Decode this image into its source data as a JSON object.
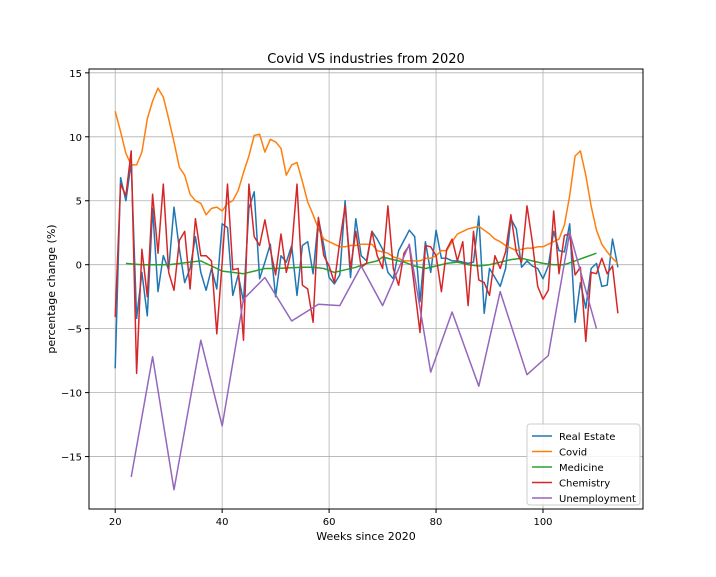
{
  "chart_data": {
    "type": "line",
    "title": "Covid VS industries from 2020",
    "xlabel": "Weeks since 2020",
    "ylabel": "percentage change (%)",
    "xlim": [
      15.1,
      118.7
    ],
    "ylim": [
      -19.1,
      15.3
    ],
    "xticks": [
      20,
      40,
      60,
      80,
      100
    ],
    "yticks": [
      -15,
      -10,
      -5,
      0,
      5,
      10,
      15
    ],
    "ytick_labels": [
      "−15",
      "−10",
      "−5",
      "0",
      "5",
      "10",
      "15"
    ],
    "grid": true,
    "legend_position": "lower-right",
    "series": [
      {
        "name": "Real Estate",
        "color": "#1f77b4",
        "x": [
          20,
          21,
          22,
          23,
          24,
          25,
          26,
          27,
          28,
          29,
          30,
          31,
          32,
          33,
          34,
          35,
          36,
          37,
          38,
          39,
          40,
          41,
          42,
          43,
          44,
          45,
          46,
          47,
          48,
          49,
          50,
          51,
          52,
          53,
          54,
          55,
          56,
          57,
          58,
          59,
          60,
          61,
          62,
          63,
          64,
          65,
          66,
          67,
          68,
          69,
          70,
          71,
          72,
          73,
          74,
          75,
          76,
          77,
          78,
          79,
          80,
          81,
          82,
          83,
          84,
          85,
          86,
          87,
          88,
          89,
          90,
          91,
          92,
          93,
          94,
          95,
          96,
          97,
          98,
          99,
          100,
          101,
          102,
          103,
          104,
          105,
          106,
          107,
          108,
          109,
          110,
          111,
          112,
          113,
          114
        ],
        "y": [
          -8.1,
          6.8,
          5.0,
          8.0,
          -4.2,
          -0.6,
          -4.0,
          4.4,
          -2.1,
          0.7,
          -0.4,
          4.5,
          1.2,
          -1.4,
          -0.3,
          2.2,
          -0.6,
          -2.0,
          -0.3,
          -1.9,
          3.2,
          2.9,
          -2.4,
          -0.8,
          -2.9,
          4.4,
          5.7,
          -1.1,
          0.2,
          1.6,
          -2.5,
          0.7,
          0.2,
          1.5,
          -2.4,
          1.5,
          1.8,
          -0.7,
          3.6,
          1.5,
          -1.0,
          -1.5,
          -0.8,
          5.0,
          -1.0,
          3.6,
          0.7,
          0.3,
          2.6,
          2.0,
          1.2,
          -0.6,
          -1.1,
          1.1,
          1.9,
          2.7,
          2.2,
          -2.9,
          1.8,
          -0.6,
          2.7,
          0.5,
          0.5,
          0.3,
          0.3,
          0.2,
          0.1,
          0.2,
          3.8,
          -3.8,
          -0.3,
          -1.0,
          -1.7,
          -0.3,
          3.6,
          2.8,
          -0.2,
          0.3,
          -0.1,
          -0.3,
          -1.1,
          -0.1,
          2.6,
          1.1,
          1.0,
          3.2,
          -4.5,
          -1.4,
          -3.4,
          -0.3,
          0.1,
          -1.7,
          -1.6,
          2.0,
          -0.2
        ]
      },
      {
        "name": "Covid",
        "color": "#ff7f0e",
        "x": [
          20,
          21,
          22,
          23,
          24,
          25,
          26,
          27,
          28,
          29,
          30,
          31,
          32,
          33,
          34,
          35,
          36,
          37,
          38,
          39,
          40,
          41,
          42,
          43,
          44,
          45,
          46,
          47,
          48,
          49,
          50,
          51,
          52,
          53,
          54,
          55,
          56,
          57,
          58,
          59,
          60,
          61,
          62,
          63,
          64,
          65,
          66,
          67,
          68,
          69,
          70,
          71,
          72,
          73,
          74,
          75,
          76,
          77,
          78,
          79,
          80,
          81,
          82,
          83,
          84,
          85,
          86,
          87,
          88,
          89,
          90,
          91,
          92,
          93,
          94,
          95,
          96,
          97,
          98,
          99,
          100,
          101,
          102,
          103,
          104,
          105,
          106,
          107,
          108,
          109,
          110,
          111,
          112,
          113,
          114
        ],
        "y": [
          12.0,
          10.4,
          8.7,
          7.8,
          7.8,
          8.8,
          11.4,
          12.8,
          13.8,
          13.1,
          11.4,
          9.6,
          7.6,
          7.0,
          5.5,
          5.0,
          4.8,
          3.9,
          4.4,
          4.5,
          4.2,
          4.8,
          5.0,
          5.8,
          7.2,
          8.5,
          10.1,
          10.2,
          8.8,
          9.8,
          9.6,
          9.1,
          7.0,
          7.8,
          8.0,
          6.5,
          4.9,
          3.9,
          2.8,
          2.0,
          1.8,
          1.6,
          1.4,
          1.4,
          1.5,
          1.5,
          1.6,
          1.6,
          1.6,
          1.1,
          1.0,
          0.9,
          0.6,
          0.5,
          0.3,
          0.3,
          0.3,
          0.3,
          0.5,
          0.5,
          0.7,
          1.1,
          1.1,
          1.8,
          2.4,
          2.6,
          2.8,
          2.9,
          3.0,
          2.7,
          2.4,
          2.0,
          1.8,
          1.5,
          1.3,
          1.1,
          1.2,
          1.3,
          1.3,
          1.4,
          1.4,
          1.6,
          1.8,
          2.0,
          3.1,
          5.4,
          8.5,
          8.9,
          7.0,
          4.6,
          2.7,
          1.6,
          1.0,
          0.5,
          0.1
        ]
      },
      {
        "name": "Medicine",
        "color": "#2ca02c",
        "x": [
          22,
          25,
          30,
          34,
          36,
          38,
          40,
          42,
          44,
          46,
          48,
          50,
          55,
          57,
          59,
          61,
          63,
          65,
          67,
          69,
          70,
          72,
          74,
          76,
          78,
          80,
          82,
          84,
          86,
          88,
          90,
          92,
          94,
          96,
          98,
          100,
          102,
          104,
          106,
          108,
          110
        ],
        "y": [
          0.1,
          0.0,
          0.0,
          0.2,
          0.3,
          -0.1,
          -0.5,
          -0.6,
          -0.7,
          -0.5,
          -0.3,
          -0.3,
          -0.2,
          -0.2,
          -0.3,
          -0.6,
          -0.4,
          -0.2,
          0.1,
          0.3,
          0.6,
          0.4,
          0.2,
          -0.1,
          -0.3,
          -0.1,
          0.1,
          0.2,
          0.0,
          -0.1,
          0.0,
          0.2,
          0.4,
          0.5,
          0.3,
          0.1,
          0.0,
          0.0,
          0.3,
          0.6,
          0.9
        ]
      },
      {
        "name": "Chemistry",
        "color": "#d62728",
        "x": [
          20,
          21,
          22,
          23,
          24,
          25,
          26,
          27,
          28,
          29,
          30,
          31,
          32,
          33,
          34,
          35,
          36,
          37,
          38,
          39,
          40,
          41,
          42,
          43,
          44,
          45,
          46,
          47,
          48,
          49,
          50,
          51,
          52,
          53,
          54,
          55,
          56,
          57,
          58,
          59,
          60,
          61,
          62,
          63,
          64,
          65,
          66,
          67,
          68,
          69,
          70,
          71,
          72,
          73,
          74,
          75,
          76,
          77,
          78,
          79,
          80,
          81,
          82,
          83,
          84,
          85,
          86,
          87,
          88,
          89,
          90,
          91,
          92,
          93,
          94,
          95,
          96,
          97,
          98,
          99,
          100,
          101,
          102,
          103,
          104,
          105,
          106,
          107,
          108,
          109,
          110,
          111,
          112,
          113,
          114
        ],
        "y": [
          -4.1,
          6.3,
          5.4,
          8.9,
          -8.5,
          1.2,
          -2.5,
          5.5,
          0.9,
          6.3,
          -0.6,
          -2.0,
          1.9,
          2.6,
          -1.9,
          3.6,
          0.7,
          0.7,
          0.3,
          -5.4,
          0.2,
          6.3,
          -0.4,
          -0.3,
          -5.9,
          6.3,
          2.2,
          1.5,
          3.5,
          1.2,
          -0.8,
          2.4,
          -0.6,
          1.2,
          6.3,
          -1.6,
          -1.9,
          -4.5,
          3.7,
          0.7,
          -0.1,
          -1.4,
          1.8,
          4.6,
          -0.3,
          2.6,
          -0.2,
          0.1,
          2.6,
          0.7,
          -0.3,
          4.6,
          -0.3,
          -1.6,
          0.9,
          1.5,
          -1.9,
          -5.3,
          1.5,
          1.4,
          0.7,
          -2.1,
          1.2,
          2.0,
          0.3,
          1.8,
          -3.2,
          2.6,
          -1.2,
          -1.4,
          -2.4,
          0.7,
          -0.3,
          1.0,
          3.9,
          1.0,
          0.2,
          4.6,
          1.8,
          -1.7,
          -2.7,
          -2.0,
          4.2,
          -0.7,
          2.3,
          2.4,
          -0.8,
          -0.2,
          -6.0,
          -0.6,
          -0.7,
          0.5,
          -0.7,
          -0.1,
          -3.8
        ]
      },
      {
        "name": "Unemployment",
        "color": "#9467bd",
        "x": [
          23,
          27,
          31,
          36,
          40,
          44,
          48,
          53,
          58,
          62,
          66,
          70,
          75,
          79,
          83,
          88,
          92,
          97,
          101,
          105,
          110
        ],
        "y": [
          -16.6,
          -7.2,
          -17.6,
          -5.9,
          -12.6,
          -2.7,
          -1.0,
          -4.4,
          -3.1,
          -3.2,
          -0.1,
          -3.2,
          1.6,
          -8.4,
          -3.7,
          -9.5,
          -2.1,
          -8.6,
          -7.1,
          2.5,
          -5.0
        ]
      }
    ]
  }
}
